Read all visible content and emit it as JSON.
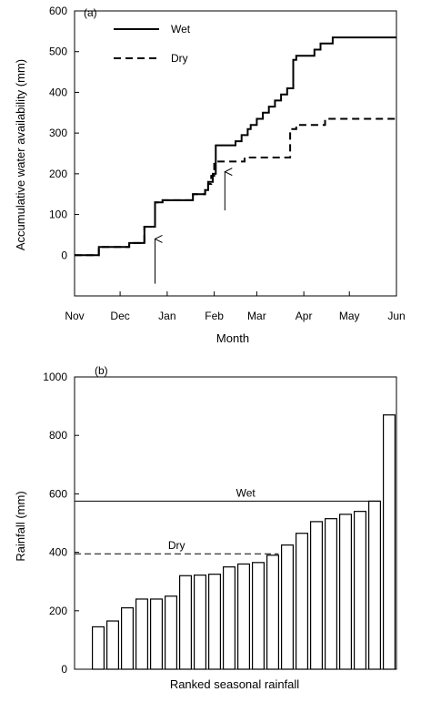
{
  "chart_data": [
    {
      "panel_label": "(a)",
      "type": "line",
      "title": "",
      "xlabel": "Month",
      "ylabel": "Accumulative water availability (mm)",
      "x_ticks": [
        "Nov",
        "Dec",
        "Jan",
        "Feb",
        "Mar",
        "Apr",
        "May",
        "Jun"
      ],
      "x_tick_values": [
        0,
        30,
        61,
        92,
        120,
        151,
        181,
        212
      ],
      "ylim": [
        -100,
        600
      ],
      "y_ticks": [
        0,
        100,
        200,
        300,
        400,
        500,
        600
      ],
      "legend": "top-left",
      "grid": false,
      "x_unit_note": "x values are days counted from 1 Nov",
      "series": [
        {
          "name": "Wet",
          "style": "solid",
          "points": [
            [
              0,
              0
            ],
            [
              16,
              0
            ],
            [
              16,
              20
            ],
            [
              26,
              20
            ],
            [
              26,
              20
            ],
            [
              36,
              20
            ],
            [
              36,
              30
            ],
            [
              46,
              30
            ],
            [
              46,
              70
            ],
            [
              53,
              70
            ],
            [
              53,
              130
            ],
            [
              58,
              130
            ],
            [
              58,
              135
            ],
            [
              78,
              135
            ],
            [
              78,
              150
            ],
            [
              86,
              150
            ],
            [
              86,
              160
            ],
            [
              88,
              160
            ],
            [
              88,
              180
            ],
            [
              91,
              180
            ],
            [
              91,
              200
            ],
            [
              93,
              200
            ],
            [
              93,
              270
            ],
            [
              106,
              270
            ],
            [
              106,
              280
            ],
            [
              110,
              280
            ],
            [
              110,
              295
            ],
            [
              114,
              295
            ],
            [
              114,
              310
            ],
            [
              116,
              310
            ],
            [
              116,
              320
            ],
            [
              120,
              320
            ],
            [
              120,
              335
            ],
            [
              124,
              335
            ],
            [
              124,
              350
            ],
            [
              128,
              350
            ],
            [
              128,
              365
            ],
            [
              132,
              365
            ],
            [
              132,
              380
            ],
            [
              136,
              380
            ],
            [
              136,
              395
            ],
            [
              140,
              395
            ],
            [
              140,
              410
            ],
            [
              144,
              410
            ],
            [
              144,
              480
            ],
            [
              146,
              480
            ],
            [
              146,
              490
            ],
            [
              158,
              490
            ],
            [
              158,
              505
            ],
            [
              162,
              505
            ],
            [
              162,
              520
            ],
            [
              170,
              520
            ],
            [
              170,
              535
            ],
            [
              212,
              535
            ]
          ]
        },
        {
          "name": "Dry",
          "style": "dashed",
          "points": [
            [
              0,
              0
            ],
            [
              16,
              0
            ],
            [
              16,
              20
            ],
            [
              36,
              20
            ],
            [
              36,
              30
            ],
            [
              46,
              30
            ],
            [
              46,
              70
            ],
            [
              53,
              70
            ],
            [
              53,
              130
            ],
            [
              58,
              130
            ],
            [
              58,
              135
            ],
            [
              78,
              135
            ],
            [
              78,
              150
            ],
            [
              86,
              150
            ],
            [
              86,
              160
            ],
            [
              88,
              160
            ],
            [
              88,
              175
            ],
            [
              90,
              175
            ],
            [
              90,
              195
            ],
            [
              92,
              195
            ],
            [
              92,
              230
            ],
            [
              112,
              230
            ],
            [
              112,
              240
            ],
            [
              142,
              240
            ],
            [
              142,
              310
            ],
            [
              146,
              310
            ],
            [
              146,
              320
            ],
            [
              165,
              320
            ],
            [
              165,
              335
            ],
            [
              212,
              335
            ]
          ]
        }
      ],
      "annotations": [
        {
          "type": "arrow",
          "x": 53,
          "y_from": -70,
          "y_to": 40
        },
        {
          "type": "arrow",
          "x": 99,
          "y_from": 110,
          "y_to": 205
        }
      ]
    },
    {
      "panel_label": "(b)",
      "type": "bar",
      "title": "",
      "xlabel": "Ranked seasonal rainfall",
      "ylabel": "Rainfall (mm)",
      "ylim": [
        0,
        1000
      ],
      "y_ticks": [
        0,
        200,
        400,
        600,
        800,
        1000
      ],
      "grid": false,
      "values": [
        145,
        165,
        210,
        240,
        240,
        250,
        320,
        322,
        325,
        350,
        360,
        365,
        390,
        425,
        465,
        505,
        515,
        530,
        540,
        575,
        870
      ],
      "reference_lines": [
        {
          "label": "Wet",
          "value": 575,
          "style": "solid"
        },
        {
          "label": "Dry",
          "value": 395,
          "style": "dashed"
        }
      ]
    }
  ]
}
